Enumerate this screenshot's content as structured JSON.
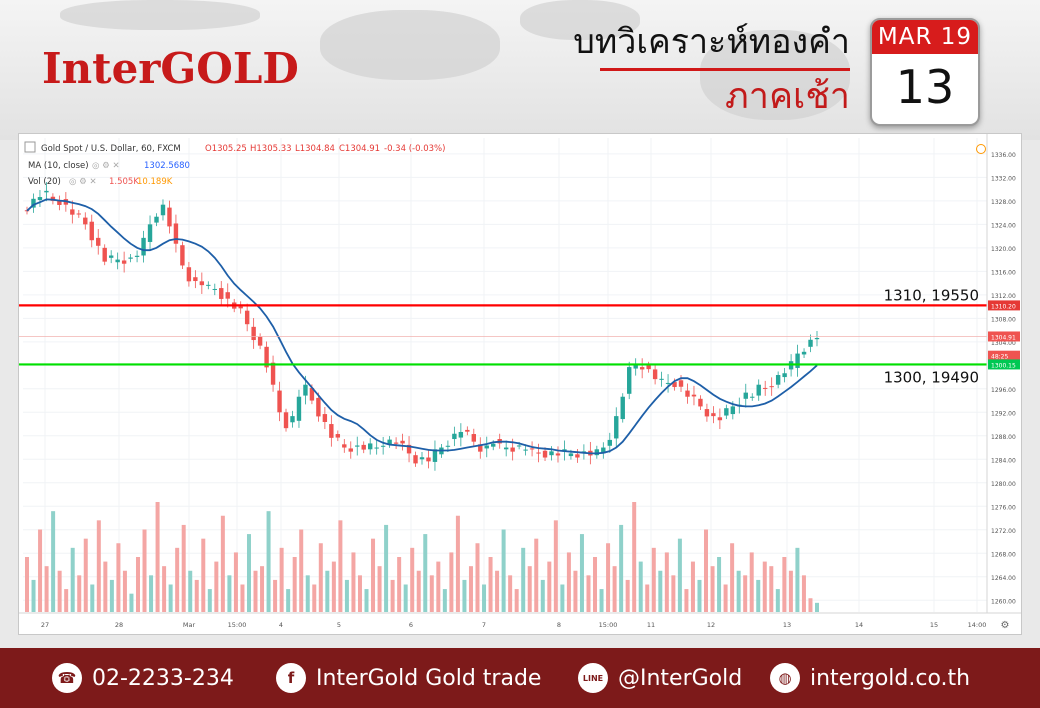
{
  "brand": {
    "logo": "InterGOLD"
  },
  "header": {
    "title": "บทวิเคราะห์ทองคำ",
    "subtitle": "ภาคเช้า"
  },
  "calendar": {
    "month_year": "MAR 19",
    "day": "13"
  },
  "chart_data": {
    "type": "candlestick",
    "title": "Gold Spot / U.S. Dollar, 60, FXCM",
    "ohlc": {
      "O": "O1305.25",
      "H": "H1305.33",
      "L": "L1304.84",
      "C": "C1304.91",
      "change": "-0.34 (-0.03%)"
    },
    "indicators": [
      {
        "name": "MA (10, close)",
        "value": "1302.5680",
        "color": "#2962ff"
      },
      {
        "name": "Vol (20)",
        "value": "1.505K",
        "value2": "10.189K",
        "color": "#ef5350"
      }
    ],
    "y_axis": {
      "range": [
        1258,
        1337
      ],
      "ticks": [
        "1336.00",
        "1332.00",
        "1328.00",
        "1324.00",
        "1320.00",
        "1316.00",
        "1312.00",
        "1308.00",
        "1304.00",
        "1300.00",
        "1296.00",
        "1292.00",
        "1288.00",
        "1284.00",
        "1280.00",
        "1276.00",
        "1272.00",
        "1268.00",
        "1264.00",
        "1260.00"
      ]
    },
    "x_axis": {
      "ticks": [
        "27",
        "28",
        "Mar",
        "15:00",
        "4",
        "5",
        "6",
        "7",
        "8",
        "15:00",
        "11",
        "12",
        "13",
        "14",
        "15",
        "14:00"
      ]
    },
    "price_tags": [
      {
        "label": "1310.20",
        "price": 1310.2,
        "color": "#e53935"
      },
      {
        "label": "1304.91",
        "price": 1304.91,
        "color": "#ef5350"
      },
      {
        "label": "48:25",
        "price": 1303.0,
        "color": "#ef5350"
      },
      {
        "label": "1300.15",
        "price": 1300.15,
        "color": "#00c853"
      }
    ],
    "levels": [
      {
        "label": "1310, 19550",
        "price": 1310.2,
        "color": "#ff0000",
        "role": "resistance"
      },
      {
        "label": "1300, 19490",
        "price": 1300.15,
        "color": "#00e000",
        "role": "support"
      }
    ],
    "price_path": [
      1327,
      1328,
      1329,
      1329,
      1328,
      1328,
      1327,
      1326,
      1325,
      1324,
      1322,
      1320,
      1318,
      1318,
      1318,
      1318,
      1318,
      1319,
      1321,
      1324,
      1326,
      1327,
      1324,
      1320,
      1317,
      1315,
      1314,
      1314,
      1313,
      1313,
      1312,
      1311,
      1310,
      1309,
      1307,
      1305,
      1303,
      1300,
      1296,
      1292,
      1290,
      1291,
      1295,
      1296,
      1294,
      1292,
      1290,
      1288,
      1287,
      1286,
      1286,
      1286,
      1286,
      1286,
      1286,
      1287,
      1287,
      1287,
      1286,
      1285,
      1284,
      1284,
      1284,
      1285,
      1286,
      1287,
      1288,
      1289,
      1288,
      1287,
      1286,
      1286,
      1287,
      1286,
      1286,
      1286,
      1286,
      1286,
      1285,
      1285,
      1285,
      1285,
      1285,
      1285,
      1285,
      1285,
      1285,
      1285,
      1285,
      1286,
      1288,
      1291,
      1295,
      1299,
      1300,
      1300,
      1299,
      1298,
      1297,
      1297,
      1297,
      1296,
      1295,
      1294,
      1293,
      1292,
      1291,
      1291,
      1292,
      1293,
      1294,
      1295,
      1295,
      1296,
      1296,
      1297,
      1298,
      1299,
      1300,
      1302,
      1303,
      1304,
      1305
    ],
    "volume_path": [
      12,
      7,
      18,
      10,
      22,
      9,
      5,
      14,
      8,
      16,
      6,
      20,
      11,
      7,
      15,
      9,
      4,
      12,
      18,
      8,
      24,
      10,
      6,
      14,
      19,
      9,
      7,
      16,
      5,
      11,
      21,
      8,
      13,
      6,
      17,
      9,
      10,
      22,
      7,
      14,
      5,
      12,
      18,
      8,
      6,
      15,
      9,
      11,
      20,
      7,
      13,
      8,
      5,
      16,
      10,
      19,
      7,
      12,
      6,
      14,
      9,
      17,
      8,
      11,
      5,
      13,
      21,
      7,
      10,
      15,
      6,
      12,
      9,
      18,
      8,
      5,
      14,
      10,
      16,
      7,
      11,
      20,
      6,
      13,
      9,
      17,
      8,
      12,
      5,
      15,
      10,
      19,
      7,
      24,
      11,
      6,
      14,
      9,
      13,
      8,
      16,
      5,
      11,
      7,
      18,
      10,
      12,
      6,
      15,
      9,
      8,
      13,
      7,
      11,
      10,
      5,
      12,
      9,
      14,
      8,
      3,
      2
    ]
  },
  "footer": {
    "phone": "02-2233-234",
    "facebook": "InterGold Gold trade",
    "line": "@InterGold",
    "web": "intergold.co.th",
    "phone_icon": "phone-icon",
    "facebook_icon": "facebook-icon",
    "line_icon": "line-icon",
    "web_icon": "globe-icon"
  }
}
